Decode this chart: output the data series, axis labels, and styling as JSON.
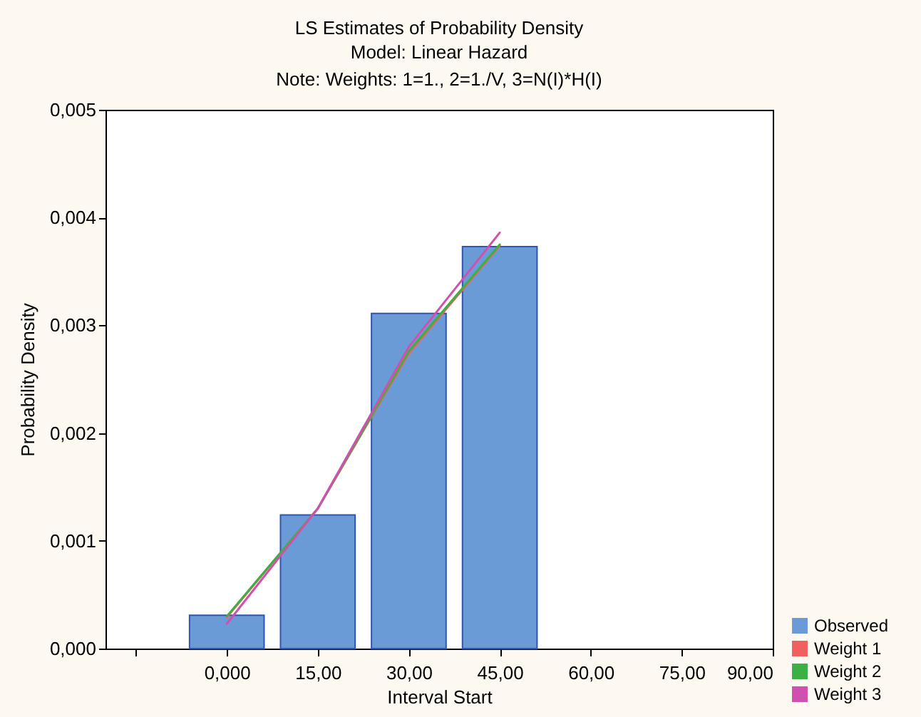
{
  "chart_data": {
    "type": "bar",
    "title": "LS Estimates of Probability Density",
    "subtitle": "Model: Linear Hazard",
    "annotations": [
      "Note: Weights: 1=1., 2=1./V, 3=N(I)*H(I)"
    ],
    "xlabel": "Interval Start",
    "ylabel": "Probability Density",
    "xlim": [
      -20,
      90
    ],
    "xticks": [
      {
        "value": -15,
        "label": null
      },
      {
        "value": 0,
        "label": "0,000"
      },
      {
        "value": 15,
        "label": "15,00"
      },
      {
        "value": 30,
        "label": "30,00"
      },
      {
        "value": 45,
        "label": "45,00"
      },
      {
        "value": 60,
        "label": "60,00"
      },
      {
        "value": 75,
        "label": "75,00"
      },
      {
        "value": 90,
        "label": "90,00"
      }
    ],
    "ylim": [
      0,
      0.005
    ],
    "yticks": [
      {
        "value": 0,
        "label": "0,000"
      },
      {
        "value": 0.001,
        "label": "0,001"
      },
      {
        "value": 0.002,
        "label": "0,002"
      },
      {
        "value": 0.003,
        "label": "0,003"
      },
      {
        "value": 0.004,
        "label": "0,004"
      },
      {
        "value": 0.005,
        "label": "0,005"
      }
    ],
    "legend": "bottom right",
    "series": [
      {
        "name": "Observed",
        "color": "#6b9bd6",
        "x": [
          0,
          15,
          30,
          45
        ],
        "values": [
          0.00031,
          0.00124,
          0.00311,
          0.00373
        ]
      },
      {
        "name": "Weight 1",
        "type": "line",
        "color": "#f06060",
        "x": [
          0,
          15,
          30,
          45
        ],
        "values": [
          0.00029,
          0.0013,
          0.00274,
          0.00374
        ]
      },
      {
        "name": "Weight 2",
        "type": "line",
        "color": "#3cb043",
        "x": [
          0,
          15,
          30,
          45
        ],
        "values": [
          0.0003,
          0.0013,
          0.00276,
          0.00375
        ]
      },
      {
        "name": "Weight 3",
        "type": "line",
        "color": "#d050b0",
        "x": [
          0,
          15,
          30,
          45
        ],
        "values": [
          0.00023,
          0.0013,
          0.0028,
          0.00386
        ]
      }
    ]
  }
}
